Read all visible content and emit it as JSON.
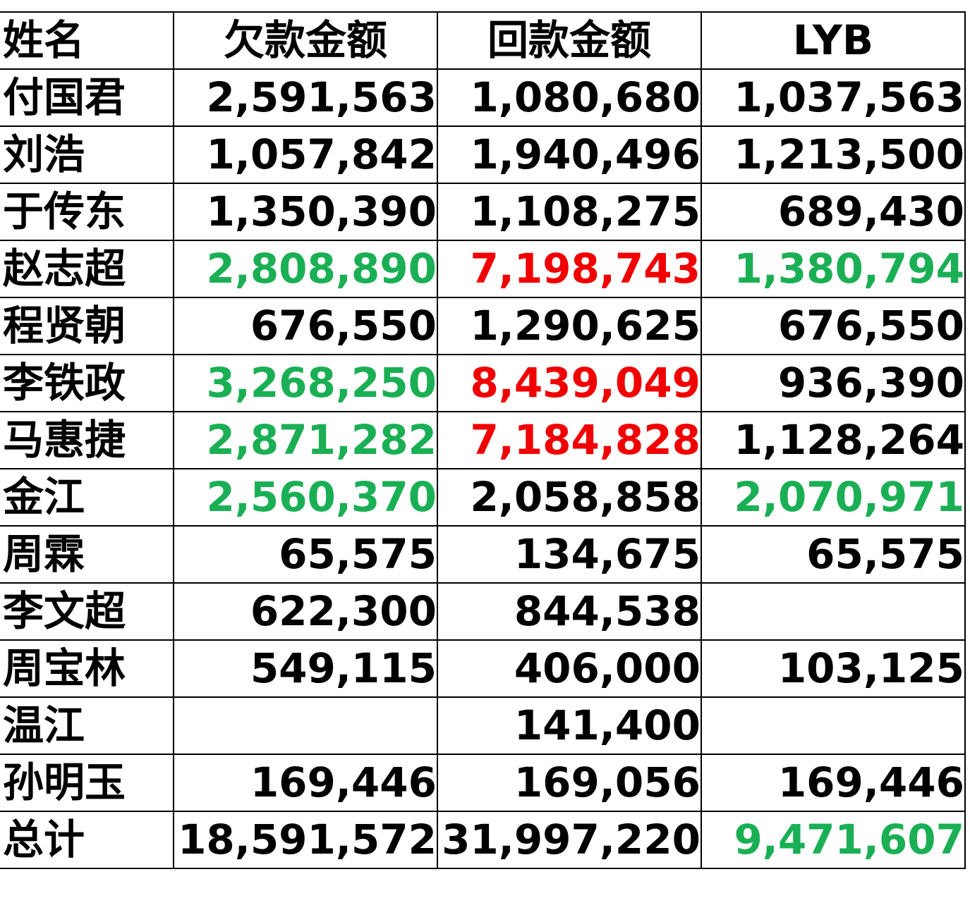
{
  "colors": {
    "green": "#1aaf54",
    "red": "#f00000",
    "default": "#000000"
  },
  "headers": [
    "姓名",
    "欠款金额",
    "回款金额",
    "LYB"
  ],
  "rows": [
    {
      "name": "付国君",
      "debt": "2,591,563",
      "debt_color": "",
      "repay": "1,080,680",
      "repay_color": "",
      "lyb": "1,037,563",
      "lyb_color": ""
    },
    {
      "name": "刘浩",
      "debt": "1,057,842",
      "debt_color": "",
      "repay": "1,940,496",
      "repay_color": "",
      "lyb": "1,213,500",
      "lyb_color": ""
    },
    {
      "name": "于传东",
      "debt": "1,350,390",
      "debt_color": "",
      "repay": "1,108,275",
      "repay_color": "",
      "lyb": "689,430",
      "lyb_color": ""
    },
    {
      "name": "赵志超",
      "debt": "2,808,890",
      "debt_color": "green",
      "repay": "7,198,743",
      "repay_color": "red",
      "lyb": "1,380,794",
      "lyb_color": "green"
    },
    {
      "name": "程贤朝",
      "debt": "676,550",
      "debt_color": "",
      "repay": "1,290,625",
      "repay_color": "",
      "lyb": "676,550",
      "lyb_color": ""
    },
    {
      "name": "李铁政",
      "debt": "3,268,250",
      "debt_color": "green",
      "repay": "8,439,049",
      "repay_color": "red",
      "lyb": "936,390",
      "lyb_color": ""
    },
    {
      "name": "马惠捷",
      "debt": "2,871,282",
      "debt_color": "green",
      "repay": "7,184,828",
      "repay_color": "red",
      "lyb": "1,128,264",
      "lyb_color": ""
    },
    {
      "name": "金江",
      "debt": "2,560,370",
      "debt_color": "green",
      "repay": "2,058,858",
      "repay_color": "",
      "lyb": "2,070,971",
      "lyb_color": "green"
    },
    {
      "name": "周霖",
      "debt": "65,575",
      "debt_color": "",
      "repay": "134,675",
      "repay_color": "",
      "lyb": "65,575",
      "lyb_color": ""
    },
    {
      "name": "李文超",
      "debt": "622,300",
      "debt_color": "",
      "repay": "844,538",
      "repay_color": "",
      "lyb": "",
      "lyb_color": ""
    },
    {
      "name": "周宝林",
      "debt": "549,115",
      "debt_color": "",
      "repay": "406,000",
      "repay_color": "",
      "lyb": "103,125",
      "lyb_color": ""
    },
    {
      "name": "温江",
      "debt": "",
      "debt_color": "",
      "repay": "141,400",
      "repay_color": "",
      "lyb": "",
      "lyb_color": ""
    },
    {
      "name": "孙明玉",
      "debt": "169,446",
      "debt_color": "",
      "repay": "169,056",
      "repay_color": "",
      "lyb": "169,446",
      "lyb_color": ""
    }
  ],
  "total": {
    "name": "总计",
    "debt": "18,591,572",
    "repay": "31,997,220",
    "lyb": "9,471,607",
    "lyb_color": "green"
  }
}
